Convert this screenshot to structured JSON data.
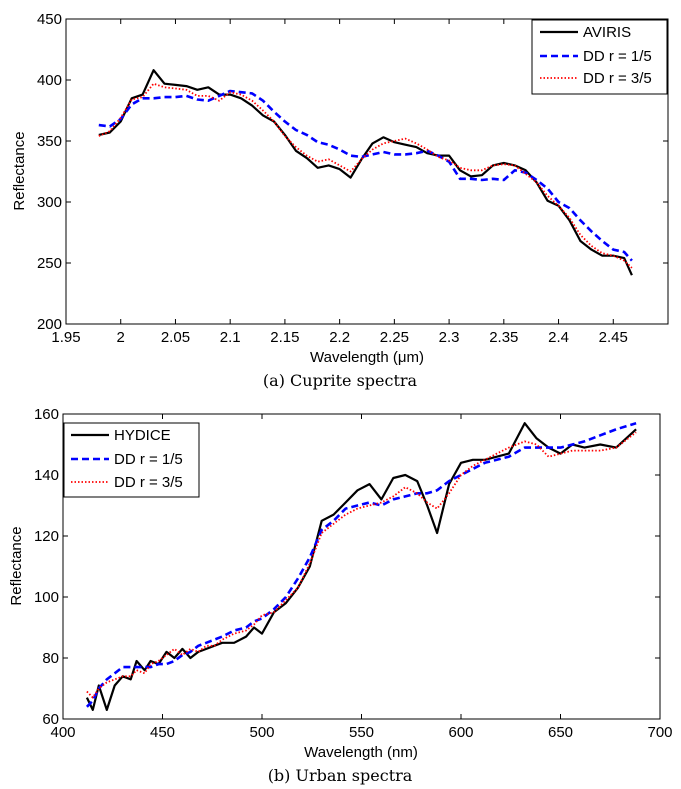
{
  "chart_data": [
    {
      "type": "line",
      "caption": "(a) Cuprite spectra",
      "xlabel": "Wavelength (μm)",
      "ylabel": "Reflectance",
      "xlim": [
        1.95,
        2.5
      ],
      "ylim": [
        200,
        450
      ],
      "xticks": [
        1.95,
        2.0,
        2.05,
        2.1,
        2.15,
        2.2,
        2.25,
        2.3,
        2.35,
        2.4,
        2.45
      ],
      "xtick_labels": [
        "1.95",
        "2",
        "2.05",
        "2.1",
        "2.15",
        "2.2",
        "2.25",
        "2.3",
        "2.35",
        "2.4",
        "2.45"
      ],
      "yticks": [
        200,
        250,
        300,
        350,
        400,
        450
      ],
      "ytick_labels": [
        "200",
        "250",
        "300",
        "350",
        "400",
        "450"
      ],
      "legend_position": "top-right",
      "x": [
        1.98,
        1.99,
        2.0,
        2.01,
        2.02,
        2.03,
        2.04,
        2.05,
        2.06,
        2.07,
        2.08,
        2.09,
        2.1,
        2.11,
        2.12,
        2.13,
        2.14,
        2.15,
        2.16,
        2.17,
        2.18,
        2.19,
        2.2,
        2.21,
        2.22,
        2.23,
        2.24,
        2.25,
        2.26,
        2.27,
        2.28,
        2.29,
        2.3,
        2.31,
        2.32,
        2.33,
        2.34,
        2.35,
        2.36,
        2.37,
        2.38,
        2.39,
        2.4,
        2.41,
        2.42,
        2.43,
        2.44,
        2.45,
        2.46,
        2.467
      ],
      "series": [
        {
          "name": "AVIRIS",
          "color": "#000000",
          "dash": "solid",
          "values": [
            355,
            357,
            366,
            385,
            388,
            408,
            397,
            396,
            395,
            392,
            394,
            388,
            388,
            385,
            379,
            371,
            366,
            355,
            342,
            336,
            328,
            330,
            327,
            320,
            335,
            348,
            353,
            349,
            347,
            345,
            340,
            338,
            338,
            326,
            321,
            322,
            330,
            332,
            330,
            326,
            316,
            301,
            297,
            285,
            268,
            261,
            256,
            256,
            254,
            240
          ]
        },
        {
          "name": "DD r = 1/5",
          "color": "#0000ff",
          "dash": "dashed",
          "values": [
            363,
            362,
            368,
            380,
            385,
            385,
            386,
            386,
            387,
            384,
            383,
            387,
            391,
            390,
            389,
            383,
            374,
            366,
            359,
            355,
            349,
            347,
            343,
            338,
            337,
            339,
            341,
            339,
            339,
            340,
            342,
            338,
            333,
            319,
            319,
            318,
            319,
            318,
            326,
            324,
            318,
            311,
            300,
            295,
            285,
            276,
            268,
            261,
            259,
            252
          ]
        },
        {
          "name": "DD r = 3/5",
          "color": "#ff0000",
          "dash": "dotted",
          "values": [
            354,
            358,
            369,
            384,
            386,
            397,
            394,
            393,
            392,
            387,
            387,
            383,
            390,
            388,
            383,
            375,
            366,
            354,
            345,
            338,
            333,
            335,
            330,
            325,
            335,
            343,
            348,
            350,
            352,
            348,
            343,
            337,
            334,
            328,
            326,
            326,
            330,
            331,
            330,
            323,
            316,
            305,
            297,
            287,
            273,
            264,
            258,
            256,
            252,
            246
          ]
        }
      ]
    },
    {
      "type": "line",
      "caption": "(b) Urban spectra",
      "xlabel": "Wavelength (nm)",
      "ylabel": "Reflectance",
      "xlim": [
        400,
        700
      ],
      "ylim": [
        60,
        160
      ],
      "xticks": [
        400,
        450,
        500,
        550,
        600,
        650,
        700
      ],
      "xtick_labels": [
        "400",
        "450",
        "500",
        "550",
        "600",
        "650",
        "700"
      ],
      "yticks": [
        60,
        80,
        100,
        120,
        140,
        160
      ],
      "ytick_labels": [
        "60",
        "80",
        "100",
        "120",
        "140",
        "160"
      ],
      "legend_position": "top-left",
      "x": [
        412,
        415,
        418,
        422,
        426,
        430,
        434,
        437,
        441,
        444,
        448,
        452,
        456,
        460,
        464,
        468,
        472,
        476,
        480,
        486,
        492,
        496,
        500,
        506,
        512,
        518,
        524,
        530,
        536,
        542,
        548,
        554,
        560,
        566,
        572,
        578,
        583,
        588,
        594,
        600,
        606,
        612,
        618,
        624,
        632,
        638,
        644,
        650,
        656,
        662,
        670,
        678,
        688
      ],
      "series": [
        {
          "name": "HYDICE",
          "color": "#000000",
          "dash": "solid",
          "values": [
            67,
            63,
            71,
            63,
            71,
            74,
            73,
            79,
            76,
            79,
            78,
            82,
            80,
            83,
            80,
            82,
            83,
            84,
            85,
            85,
            87,
            90,
            88,
            95,
            98,
            103,
            110,
            125,
            127,
            131,
            135,
            137,
            132,
            139,
            140,
            138,
            130,
            121,
            137,
            144,
            145,
            145,
            146,
            147,
            157,
            152,
            149,
            147,
            150,
            149,
            150,
            149,
            155
          ]
        },
        {
          "name": "DD r = 1/5",
          "color": "#0000ff",
          "dash": "dashed",
          "values": [
            64,
            66,
            70,
            73,
            75,
            77,
            77,
            77,
            77,
            77,
            78,
            78,
            79,
            81,
            82,
            84,
            85,
            86,
            87,
            89,
            90,
            92,
            93,
            96,
            100,
            106,
            113,
            122,
            125,
            129,
            130,
            131,
            130,
            132,
            133,
            134,
            134,
            135,
            138,
            140,
            142,
            144,
            145,
            146,
            149,
            149,
            149,
            149,
            150,
            151,
            153,
            155,
            157
          ]
        },
        {
          "name": "DD r = 3/5",
          "color": "#ff0000",
          "dash": "dotted",
          "values": [
            69,
            67,
            70,
            72,
            73,
            74,
            74,
            76,
            75,
            78,
            79,
            81,
            83,
            81,
            83,
            82,
            84,
            84,
            86,
            88,
            89,
            91,
            94,
            95,
            99,
            103,
            111,
            121,
            124,
            127,
            129,
            130,
            131,
            133,
            136,
            134,
            131,
            129,
            134,
            140,
            143,
            145,
            147,
            149,
            151,
            150,
            146,
            147,
            148,
            148,
            148,
            149,
            154
          ]
        }
      ]
    }
  ]
}
